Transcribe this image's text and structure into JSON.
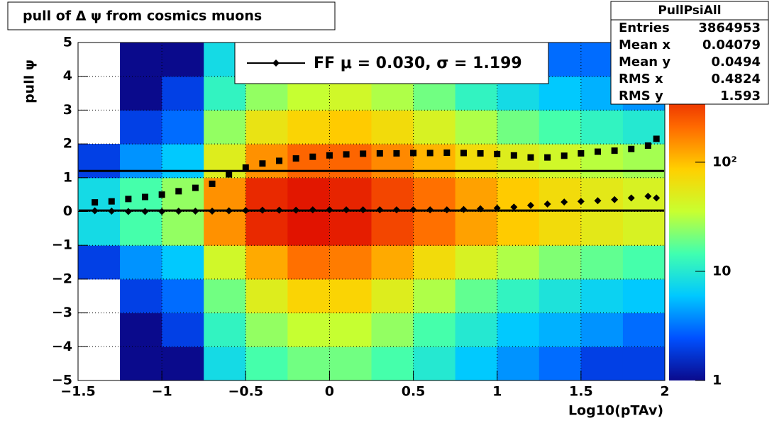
{
  "chart_data": {
    "type": "heatmap",
    "title": "pull of Δ ψ from cosmics muons",
    "x_label": "Log10(pTAv)",
    "y_label": "pull ψ",
    "xlim": [
      -1.5,
      2
    ],
    "ylim": [
      -5,
      5
    ],
    "zlim": [
      1,
      1250
    ],
    "log_z": true,
    "grid": true,
    "xticks": [
      {
        "value": -1.5,
        "label": "−1.5"
      },
      {
        "value": -1,
        "label": "−1"
      },
      {
        "value": -0.5,
        "label": "−0.5"
      },
      0,
      0.5,
      1,
      1.5,
      2
    ],
    "yticks": [
      {
        "value": -5,
        "label": "−5"
      },
      {
        "value": -4,
        "label": "−4"
      },
      {
        "value": -3,
        "label": "−3"
      },
      {
        "value": -2,
        "label": "−2"
      },
      {
        "value": -1,
        "label": "−1"
      },
      0,
      1,
      2,
      3,
      4,
      5
    ],
    "zticks": [
      1,
      10,
      {
        "value": 100,
        "label": "10²"
      }
    ],
    "palette": [
      "#0a0a8c",
      "#0050ff",
      "#00c8ff",
      "#40ffb0",
      "#c8ff30",
      "#ffd000",
      "#ff6a00",
      "#e01000",
      "#8b0000"
    ],
    "xbins": [
      -1.5,
      -1.25,
      -1,
      -0.75,
      -0.5,
      -0.25,
      0,
      0.25,
      0.5,
      0.75,
      1,
      1.25,
      1.5,
      1.75,
      2
    ],
    "ybins": [
      -5,
      -4,
      -3,
      -2,
      -1,
      0,
      1,
      2,
      3,
      4,
      5
    ],
    "z": [
      [
        null,
        null,
        null,
        2,
        8,
        8,
        2,
        null,
        null,
        null
      ],
      [
        1,
        1,
        2,
        4,
        15,
        15,
        4,
        2,
        1,
        1
      ],
      [
        1,
        2,
        3,
        6,
        25,
        25,
        6,
        3,
        2,
        1
      ],
      [
        8,
        12,
        20,
        40,
        150,
        150,
        50,
        25,
        12,
        8
      ],
      [
        15,
        25,
        50,
        120,
        400,
        400,
        150,
        60,
        25,
        15
      ],
      [
        20,
        35,
        80,
        200,
        500,
        480,
        220,
        80,
        35,
        20
      ],
      [
        20,
        35,
        80,
        180,
        450,
        420,
        220,
        90,
        40,
        20
      ],
      [
        15,
        25,
        50,
        120,
        300,
        300,
        160,
        70,
        30,
        15
      ],
      [
        10,
        15,
        30,
        70,
        200,
        200,
        110,
        45,
        20,
        10
      ],
      [
        6,
        10,
        18,
        45,
        130,
        130,
        70,
        30,
        12,
        6
      ],
      [
        4,
        6,
        12,
        30,
        90,
        90,
        50,
        20,
        8,
        4
      ],
      [
        3,
        5,
        9,
        22,
        70,
        70,
        40,
        15,
        6,
        3
      ],
      [
        2,
        4,
        7,
        18,
        55,
        55,
        32,
        12,
        5,
        3
      ],
      [
        2,
        3,
        6,
        15,
        45,
        45,
        28,
        10,
        4,
        2
      ]
    ],
    "x": [
      -1.4,
      -1.3,
      -1.2,
      -1.1,
      -1,
      -0.9,
      -0.8,
      -0.7,
      -0.6,
      -0.5,
      -0.4,
      -0.3,
      -0.2,
      -0.1,
      0,
      0.1,
      0.2,
      0.3,
      0.4,
      0.5,
      0.6,
      0.7,
      0.8,
      0.9,
      1,
      1.1,
      1.2,
      1.3,
      1.4,
      1.5,
      1.6,
      1.7,
      1.8,
      1.9,
      1.95
    ],
    "series": [
      {
        "marker": "square",
        "color": "#000000",
        "values": [
          0.27,
          0.3,
          0.37,
          0.43,
          0.5,
          0.6,
          0.7,
          0.82,
          1.1,
          1.3,
          1.42,
          1.5,
          1.57,
          1.62,
          1.66,
          1.69,
          1.71,
          1.72,
          1.72,
          1.73,
          1.73,
          1.74,
          1.73,
          1.72,
          1.7,
          1.66,
          1.6,
          1.6,
          1.65,
          1.72,
          1.77,
          1.8,
          1.85,
          1.95,
          2.15
        ]
      },
      {
        "marker": "diamond",
        "color": "#000000",
        "values": [
          0.02,
          0.01,
          0,
          0,
          0,
          0.01,
          0.01,
          0.01,
          0.02,
          0.03,
          0.04,
          0.04,
          0.04,
          0.05,
          0.05,
          0.05,
          0.05,
          0.05,
          0.05,
          0.05,
          0.05,
          0.05,
          0.06,
          0.08,
          0.1,
          0.13,
          0.18,
          0.22,
          0.28,
          0.3,
          0.32,
          0.35,
          0.4,
          0.45,
          0.4
        ]
      }
    ],
    "hlines": [
      0.03,
      1.199
    ],
    "legend": "FF μ =  0.030, σ =   1.199",
    "stats": {
      "name": "PullPsiAll",
      "rows": [
        {
          "label": "Entries",
          "value": "3864953"
        },
        {
          "label": "Mean x",
          "value": "0.04079"
        },
        {
          "label": "Mean y",
          "value": "0.0494"
        },
        {
          "label": "RMS x",
          "value": "0.4824"
        },
        {
          "label": "RMS y",
          "value": "1.593"
        }
      ]
    }
  }
}
